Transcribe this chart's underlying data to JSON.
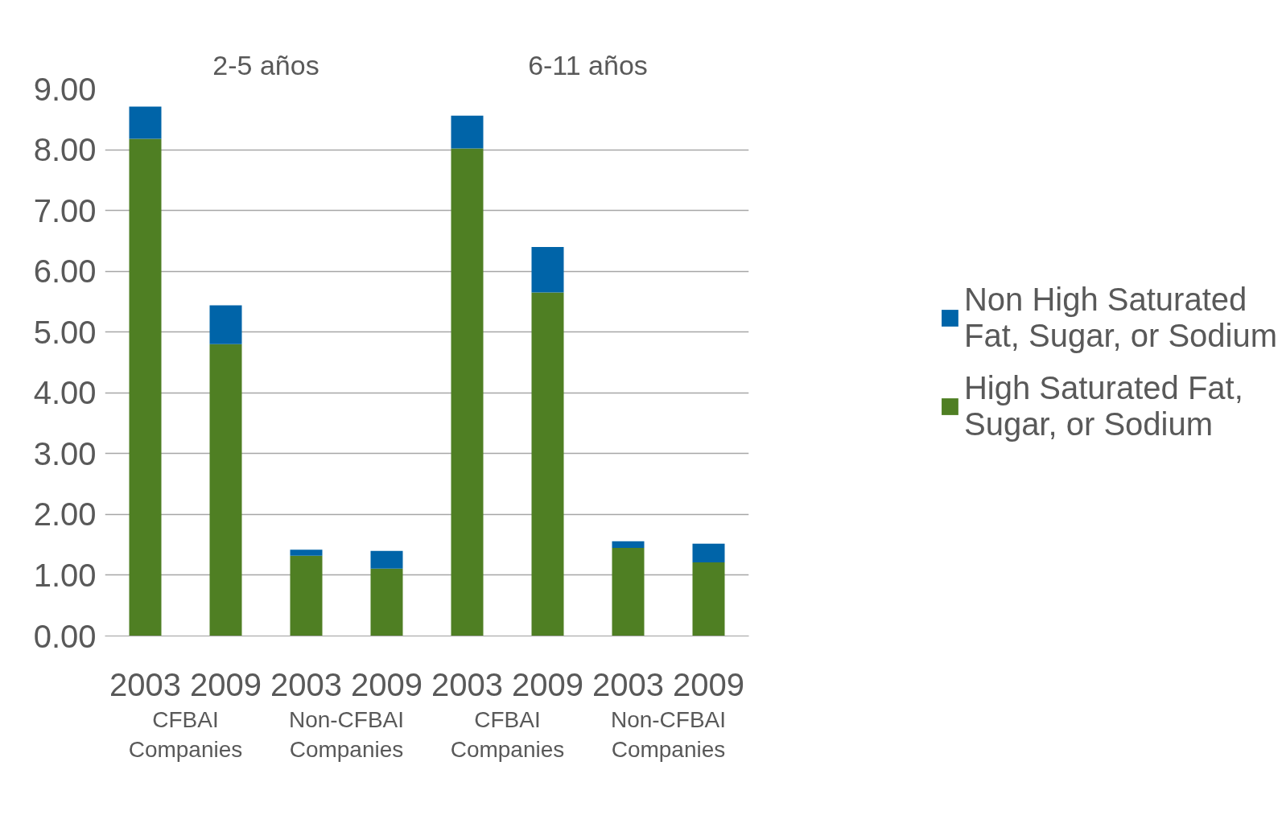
{
  "chart_data": {
    "type": "bar",
    "stacked": true,
    "categories": [
      "2003",
      "2009",
      "2003",
      "2009",
      "2003",
      "2009",
      "2003",
      "2009"
    ],
    "series": [
      {
        "name": "High Saturated Fat, Sugar, or Sodium",
        "color": "#4f7f23",
        "values": [
          8.18,
          4.8,
          1.32,
          1.11,
          8.02,
          5.65,
          1.45,
          1.21
        ]
      },
      {
        "name": "Non High Saturated Fat, Sugar, or Sodium",
        "color": "#0064a8",
        "values": [
          0.53,
          0.64,
          0.1,
          0.29,
          0.54,
          0.75,
          0.11,
          0.31
        ]
      }
    ],
    "ylim": [
      0,
      9
    ],
    "yticks": [
      {
        "value": 0,
        "label": "0.00"
      },
      {
        "value": 1,
        "label": "1.00"
      },
      {
        "value": 2,
        "label": "2.00"
      },
      {
        "value": 3,
        "label": "3.00"
      },
      {
        "value": 4,
        "label": "4.00"
      },
      {
        "value": 5,
        "label": "5.00"
      },
      {
        "value": 6,
        "label": "6.00"
      },
      {
        "value": 7,
        "label": "7.00"
      },
      {
        "value": 8,
        "label": "8.00"
      },
      {
        "value": 9,
        "label": "9.00"
      }
    ],
    "grid": "y",
    "legend": "right",
    "annotations": [
      "2-5 años",
      "6-11 años",
      "CFBAI Companies",
      "Non-CFBAI Companies",
      "CFBAI Companies",
      "Non-CFBAI Companies"
    ]
  }
}
